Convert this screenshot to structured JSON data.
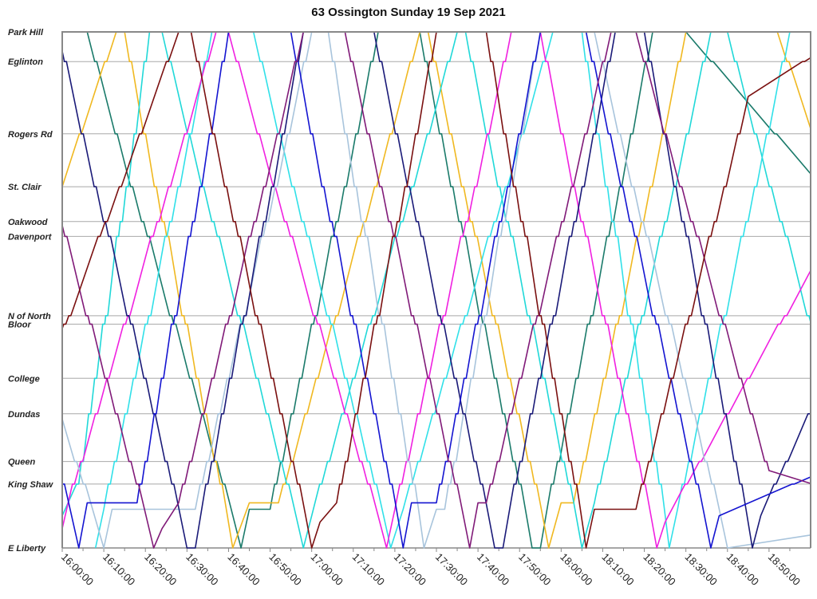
{
  "chart_data": {
    "type": "line",
    "title": "63 Ossington Sunday 19 Sep 2021",
    "x_range": [
      "16:00:00",
      "19:00:00"
    ],
    "x_ticks": [
      "16:00:00",
      "16:10:00",
      "16:20:00",
      "16:30:00",
      "16:40:00",
      "16:50:00",
      "17:00:00",
      "17:10:00",
      "17:20:00",
      "17:30:00",
      "17:40:00",
      "17:50:00",
      "18:00:00",
      "18:10:00",
      "18:20:00",
      "18:30:00",
      "18:40:00",
      "18:50:00"
    ],
    "grid": true,
    "y_stations": [
      {
        "name": "Park Hill",
        "distance": 8.0
      },
      {
        "name": "Eglinton",
        "distance": 7.54
      },
      {
        "name": "Rogers Rd",
        "distance": 6.42
      },
      {
        "name": "St. Clair",
        "distance": 5.6
      },
      {
        "name": "Oakwood",
        "distance": 5.06
      },
      {
        "name": "Davenport",
        "distance": 4.83
      },
      {
        "name": "N of North",
        "distance": 3.6
      },
      {
        "name": "Bloor",
        "distance": 3.47
      },
      {
        "name": "College",
        "distance": 2.63
      },
      {
        "name": "Dundas",
        "distance": 2.08
      },
      {
        "name": "Queen",
        "distance": 1.34
      },
      {
        "name": "King Shaw",
        "distance": 0.99
      },
      {
        "name": "E Liberty",
        "distance": 0.0
      }
    ],
    "series": [
      {
        "color": "#1a7a6a",
        "points": [
          [
            "16:00",
            8
          ],
          [
            "16:06",
            8
          ],
          [
            "16:43",
            0
          ],
          [
            "16:45",
            0.6
          ],
          [
            "16:50",
            0.6
          ],
          [
            "17:16",
            8
          ],
          [
            "17:26",
            8
          ],
          [
            "17:53",
            0
          ],
          [
            "17:55",
            0
          ],
          [
            "18:22",
            8
          ],
          [
            "18:30",
            8
          ],
          [
            "19:00",
            5.8
          ]
        ]
      },
      {
        "color": "#f0b820",
        "points": [
          [
            "16:00",
            5.6
          ],
          [
            "16:13",
            8
          ],
          [
            "16:15",
            8
          ],
          [
            "16:41",
            0
          ],
          [
            "16:45",
            0.7
          ],
          [
            "16:52",
            0.7
          ],
          [
            "17:26",
            8
          ],
          [
            "17:28",
            8
          ],
          [
            "17:57",
            0
          ],
          [
            "18:00",
            0.7
          ],
          [
            "18:03",
            0.7
          ],
          [
            "18:30",
            8
          ],
          [
            "18:52",
            8
          ],
          [
            "19:00",
            6.5
          ]
        ]
      },
      {
        "color": "#20d8d8",
        "points": [
          [
            "16:00",
            0.5
          ],
          [
            "16:04",
            1.0
          ],
          [
            "16:21",
            8
          ],
          [
            "16:24",
            8
          ],
          [
            "16:58",
            0
          ],
          [
            "17:00",
            0.5
          ],
          [
            "17:35",
            8
          ],
          [
            "17:37",
            8
          ],
          [
            "18:05",
            0
          ],
          [
            "18:08",
            0.7
          ],
          [
            "18:36",
            8
          ],
          [
            "18:40",
            8
          ],
          [
            "19:00",
            3.5
          ]
        ]
      },
      {
        "color": "#30e0e8",
        "points": [
          [
            "16:08",
            0
          ],
          [
            "16:10",
            0.6
          ],
          [
            "16:36",
            8
          ],
          [
            "16:46",
            8
          ],
          [
            "17:19",
            0
          ],
          [
            "17:22",
            0.6
          ],
          [
            "17:58",
            8
          ],
          [
            "18:05",
            8
          ],
          [
            "18:26",
            0
          ],
          [
            "18:28",
            0.6
          ],
          [
            "18:55",
            8
          ],
          [
            "19:00",
            8
          ]
        ]
      },
      {
        "color": "#f020e0",
        "points": [
          [
            "16:00",
            0.3
          ],
          [
            "16:03",
            1.0
          ],
          [
            "16:37",
            8
          ],
          [
            "16:40",
            8
          ],
          [
            "17:18",
            0
          ],
          [
            "17:20",
            0.6
          ],
          [
            "17:48",
            8
          ],
          [
            "17:55",
            8
          ],
          [
            "18:23",
            0
          ],
          [
            "18:25",
            0.4
          ],
          [
            "19:00",
            4.3
          ]
        ]
      },
      {
        "color": "#a8c4dc",
        "points": [
          [
            "16:00",
            2.0
          ],
          [
            "16:10",
            0
          ],
          [
            "16:12",
            0.6
          ],
          [
            "16:32",
            0.6
          ],
          [
            "17:00",
            8
          ],
          [
            "17:04",
            8
          ],
          [
            "17:27",
            0
          ],
          [
            "17:30",
            0.6
          ],
          [
            "17:32",
            0.6
          ],
          [
            "17:55",
            8
          ],
          [
            "18:08",
            8
          ],
          [
            "18:40",
            0
          ],
          [
            "19:00",
            0.2
          ]
        ]
      },
      {
        "color": "#1a1a78",
        "points": [
          [
            "16:00",
            7.7
          ],
          [
            "16:30",
            0
          ],
          [
            "16:32",
            0
          ],
          [
            "16:58",
            8
          ],
          [
            "17:15",
            8
          ],
          [
            "17:44",
            0
          ],
          [
            "17:46",
            0
          ],
          [
            "18:13",
            8
          ],
          [
            "18:20",
            8
          ],
          [
            "18:46",
            0
          ],
          [
            "18:48",
            0.5
          ],
          [
            "19:00",
            2.1
          ]
        ]
      },
      {
        "color": "#1414d0",
        "points": [
          [
            "16:00",
            1.0
          ],
          [
            "16:04",
            0
          ],
          [
            "16:06",
            0.7
          ],
          [
            "16:18",
            0.7
          ],
          [
            "16:40",
            8
          ],
          [
            "16:55",
            8
          ],
          [
            "17:22",
            0
          ],
          [
            "17:24",
            0.7
          ],
          [
            "17:30",
            0.7
          ],
          [
            "17:55",
            8
          ],
          [
            "18:06",
            8
          ],
          [
            "18:36",
            0
          ],
          [
            "18:38",
            0.5
          ],
          [
            "19:00",
            1.1
          ]
        ]
      },
      {
        "color": "#801a78",
        "points": [
          [
            "16:00",
            5.0
          ],
          [
            "16:22",
            0
          ],
          [
            "16:24",
            0.3
          ],
          [
            "16:28",
            0.7
          ],
          [
            "16:58",
            8
          ],
          [
            "17:08",
            8
          ],
          [
            "17:38",
            0
          ],
          [
            "17:40",
            0.7
          ],
          [
            "17:42",
            0.7
          ],
          [
            "18:12",
            8
          ],
          [
            "18:18",
            8
          ],
          [
            "18:50",
            1.2
          ],
          [
            "19:00",
            1.0
          ]
        ]
      },
      {
        "color": "#7a1010",
        "points": [
          [
            "16:00",
            3.4
          ],
          [
            "16:28",
            8
          ],
          [
            "16:31",
            8
          ],
          [
            "17:00",
            0
          ],
          [
            "17:02",
            0.4
          ],
          [
            "17:06",
            0.7
          ],
          [
            "17:30",
            8
          ],
          [
            "17:42",
            8
          ],
          [
            "18:06",
            0
          ],
          [
            "18:08",
            0.6
          ],
          [
            "18:18",
            0.6
          ],
          [
            "18:45",
            7.0
          ],
          [
            "19:00",
            7.6
          ]
        ]
      }
    ]
  }
}
